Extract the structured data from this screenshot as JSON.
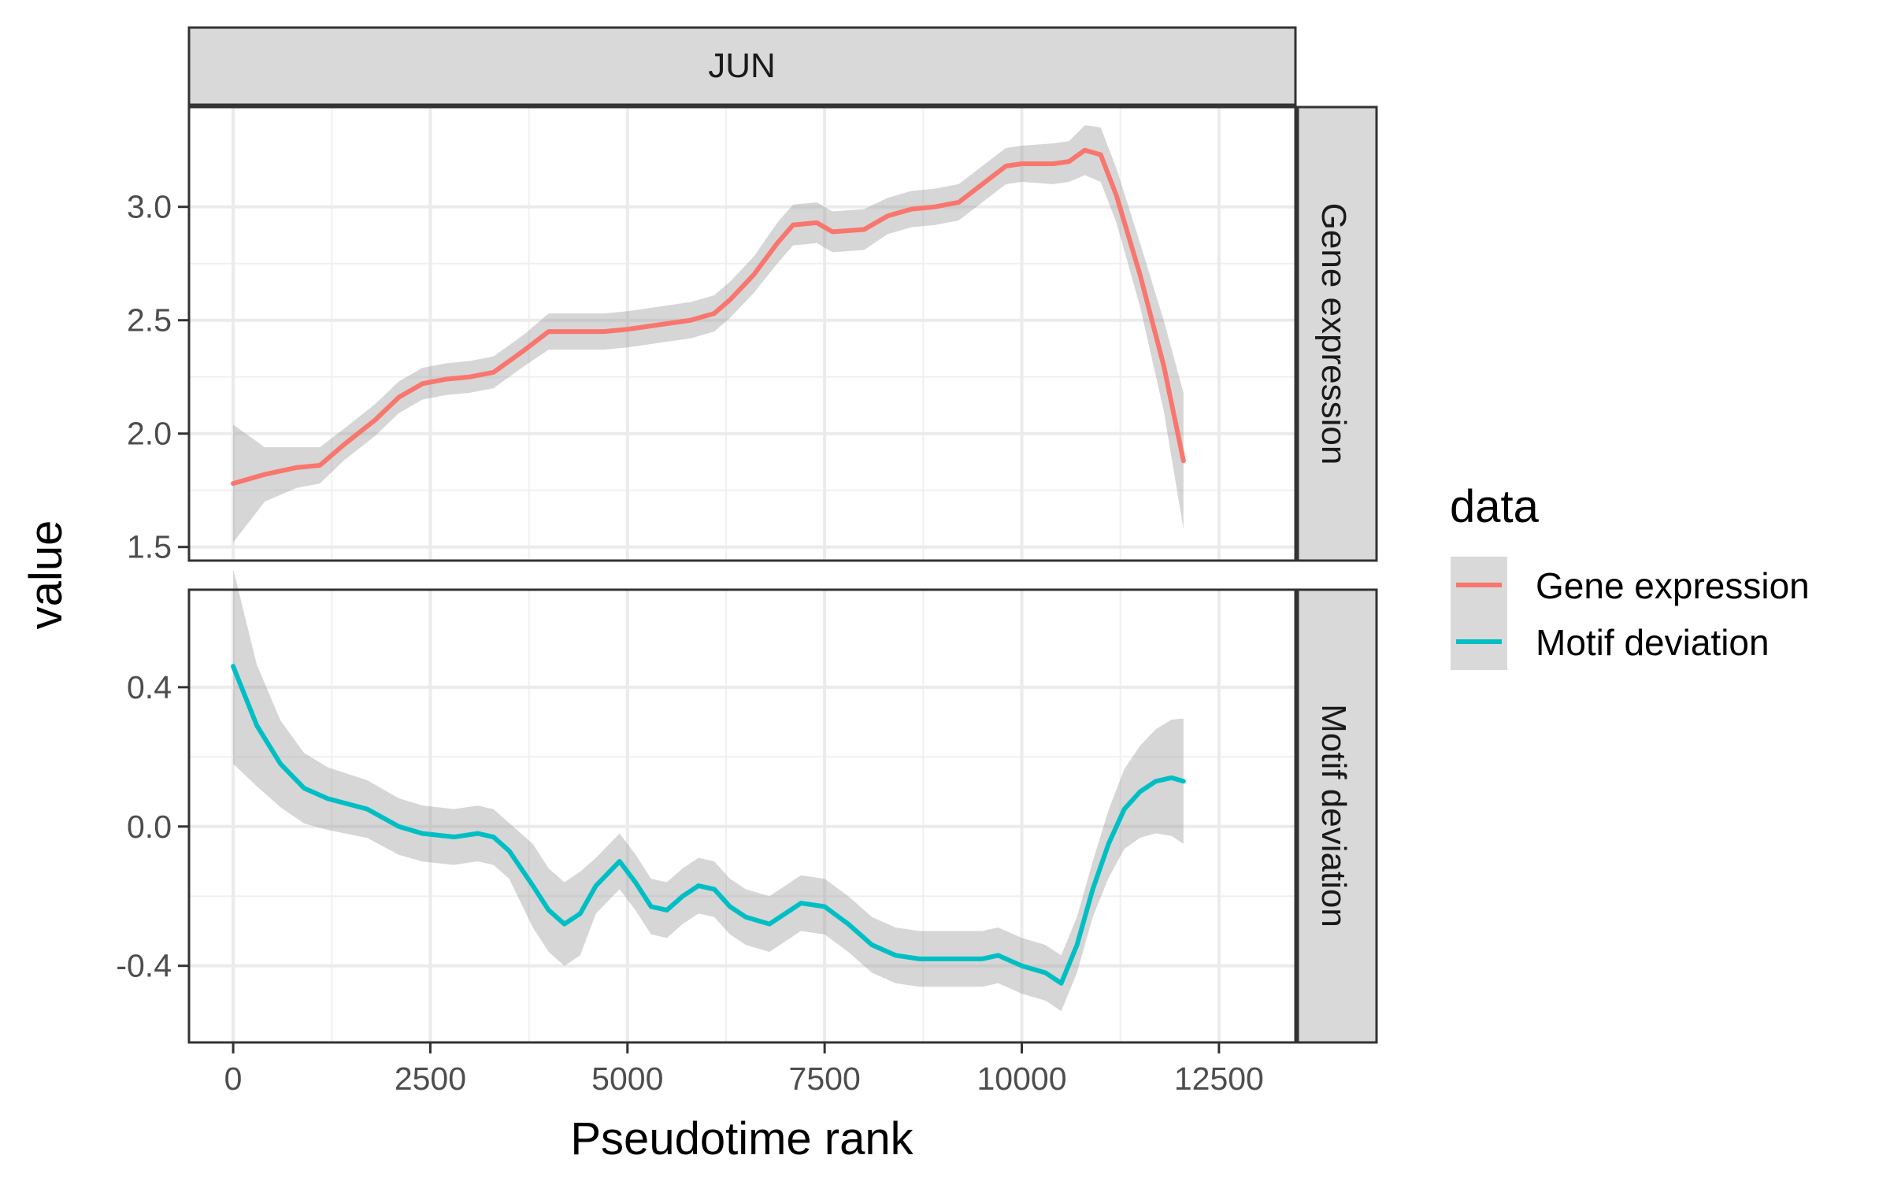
{
  "chart_data": {
    "type": "line",
    "facet_title": "JUN",
    "xlabel": "Pseudotime rank",
    "ylabel": "value",
    "xlim": [
      -560,
      13470
    ],
    "x_ticks": [
      0,
      2500,
      5000,
      7500,
      10000,
      12500
    ],
    "x_tick_labels": [
      "0",
      "2500",
      "5000",
      "7500",
      "10000",
      "12500"
    ],
    "legend": {
      "title": "data",
      "position": "right",
      "entries": [
        {
          "label": "Gene expression",
          "color": "#F8766D"
        },
        {
          "label": "Motif deviation",
          "color": "#00BFC4"
        }
      ]
    },
    "grid": true,
    "ribbon_color": "#999999",
    "panels": [
      {
        "strip": "Gene expression",
        "ylim": [
          1.44,
          3.44
        ],
        "y_ticks": [
          1.5,
          2.0,
          2.5,
          3.0
        ],
        "y_tick_labels": [
          "1.5",
          "2.0",
          "2.5",
          "3.0"
        ],
        "series": {
          "name": "Gene expression",
          "color": "#F8766D",
          "x": [
            0,
            400,
            800,
            1100,
            1400,
            1800,
            2100,
            2400,
            2700,
            3000,
            3300,
            3700,
            4000,
            4400,
            4700,
            5000,
            5400,
            5800,
            6100,
            6300,
            6600,
            6900,
            7100,
            7400,
            7600,
            8000,
            8300,
            8600,
            8900,
            9200,
            9500,
            9800,
            10000,
            10400,
            10600,
            10800,
            11000,
            11200,
            11500,
            11800,
            12050
          ],
          "y": [
            1.78,
            1.82,
            1.85,
            1.86,
            1.95,
            2.06,
            2.16,
            2.22,
            2.24,
            2.25,
            2.27,
            2.37,
            2.45,
            2.45,
            2.45,
            2.46,
            2.48,
            2.5,
            2.53,
            2.59,
            2.7,
            2.84,
            2.92,
            2.93,
            2.89,
            2.9,
            2.96,
            2.99,
            3.0,
            3.02,
            3.1,
            3.18,
            3.19,
            3.19,
            3.2,
            3.25,
            3.23,
            3.05,
            2.7,
            2.3,
            1.88
          ],
          "ribbon": [
            0.26,
            0.12,
            0.09,
            0.08,
            0.07,
            0.07,
            0.07,
            0.07,
            0.07,
            0.07,
            0.07,
            0.07,
            0.08,
            0.08,
            0.08,
            0.08,
            0.08,
            0.08,
            0.08,
            0.08,
            0.08,
            0.09,
            0.09,
            0.09,
            0.09,
            0.09,
            0.08,
            0.08,
            0.08,
            0.08,
            0.08,
            0.08,
            0.08,
            0.09,
            0.09,
            0.11,
            0.12,
            0.12,
            0.14,
            0.2,
            0.3
          ]
        }
      },
      {
        "strip": "Motif deviation",
        "ylim": [
          -0.62,
          0.68
        ],
        "y_ticks": [
          -0.4,
          0.0,
          0.4
        ],
        "y_tick_labels": [
          "-0.4",
          "0.0",
          "0.4"
        ],
        "series": {
          "name": "Motif deviation",
          "color": "#00BFC4",
          "x": [
            0,
            300,
            600,
            900,
            1200,
            1700,
            2100,
            2400,
            2800,
            3100,
            3300,
            3500,
            3800,
            4000,
            4200,
            4400,
            4600,
            4900,
            5100,
            5300,
            5500,
            5700,
            5900,
            6100,
            6300,
            6500,
            6800,
            7000,
            7200,
            7500,
            7800,
            8100,
            8400,
            8700,
            9000,
            9300,
            9500,
            9700,
            10000,
            10300,
            10500,
            10700,
            10900,
            11100,
            11300,
            11500,
            11700,
            11900,
            12050
          ],
          "y": [
            0.46,
            0.29,
            0.18,
            0.11,
            0.08,
            0.05,
            0.0,
            -0.02,
            -0.03,
            -0.02,
            -0.03,
            -0.07,
            -0.17,
            -0.24,
            -0.28,
            -0.25,
            -0.17,
            -0.1,
            -0.16,
            -0.23,
            -0.24,
            -0.2,
            -0.17,
            -0.18,
            -0.23,
            -0.26,
            -0.28,
            -0.25,
            -0.22,
            -0.23,
            -0.28,
            -0.34,
            -0.37,
            -0.38,
            -0.38,
            -0.38,
            -0.38,
            -0.37,
            -0.4,
            -0.42,
            -0.45,
            -0.34,
            -0.18,
            -0.05,
            0.05,
            0.1,
            0.13,
            0.14,
            0.13
          ]
        }
      }
    ]
  }
}
